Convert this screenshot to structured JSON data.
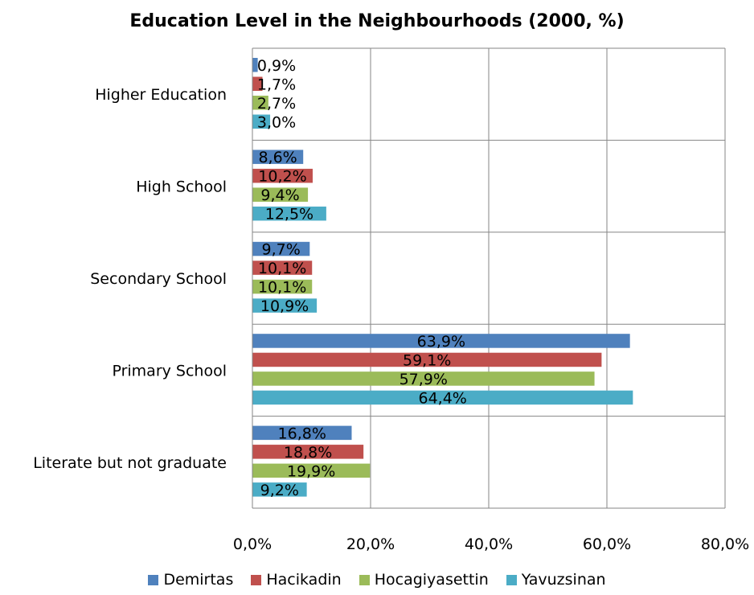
{
  "chart_data": {
    "type": "bar",
    "orientation": "horizontal",
    "title": "Education Level in the Neighbourhoods (2000, %)",
    "xlabel": "",
    "ylabel": "",
    "xlim": [
      0,
      80
    ],
    "grid": true,
    "legend_position": "bottom",
    "x_ticks": [
      "0,0%",
      "20,0%",
      "40,0%",
      "60,0%",
      "80,0%"
    ],
    "categories": [
      "Higher Education",
      "High School",
      "Secondary School",
      "Primary School",
      "Literate but not graduate"
    ],
    "series": [
      {
        "name": "Demirtas",
        "color": "#4F81BD",
        "values": [
          0.9,
          8.6,
          9.7,
          63.9,
          16.8
        ],
        "labels": [
          "0,9%",
          "8,6%",
          "9,7%",
          "63,9%",
          "16,8%"
        ]
      },
      {
        "name": "Hacikadin",
        "color": "#C0504D",
        "values": [
          1.7,
          10.2,
          10.1,
          59.1,
          18.8
        ],
        "labels": [
          "1,7%",
          "10,2%",
          "10,1%",
          "59,1%",
          "18,8%"
        ]
      },
      {
        "name": "Hocagiyasettin",
        "color": "#9BBB59",
        "values": [
          2.7,
          9.4,
          10.1,
          57.9,
          19.9
        ],
        "labels": [
          "2,7%",
          "9,4%",
          "10,1%",
          "57,9%",
          "19,9%"
        ]
      },
      {
        "name": "Yavuzsinan",
        "color": "#4BACC6",
        "values": [
          3.0,
          12.5,
          10.9,
          64.4,
          9.2
        ],
        "labels": [
          "3,0%",
          "12,5%",
          "10,9%",
          "64,4%",
          "9,2%"
        ]
      }
    ]
  }
}
